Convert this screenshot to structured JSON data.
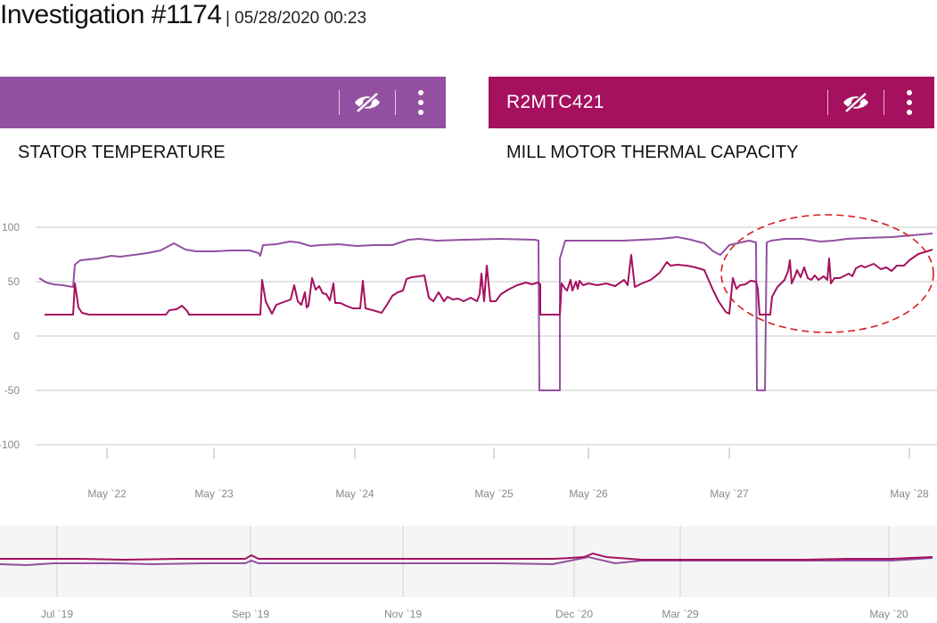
{
  "investigation": {
    "title": "Investigation #1174",
    "meta": "| 05/28/2020 00:23"
  },
  "panels": [
    {
      "header_label": "",
      "subtitle": "STATOR TEMPERATURE",
      "color": "#9350a0"
    },
    {
      "header_label": "R2MTC421",
      "subtitle": "MILL MOTOR THERMAL CAPACITY",
      "color": "#a5105f"
    }
  ],
  "icons": {
    "hide": "eye-slash-icon",
    "more": "more-vertical-icon"
  },
  "colors": {
    "annotation": "#d42020",
    "grid": "#e3e3e3",
    "axis_text": "#888888"
  },
  "chart_data": [
    {
      "type": "line",
      "y_ticks": [
        "100",
        "50",
        "0",
        "-50",
        "-100"
      ],
      "ylim": [
        -100,
        100
      ],
      "x_ticks": [
        "May `22",
        "May `23",
        "May `24",
        "May `25",
        "May `26",
        "May `27",
        "May `28"
      ],
      "grid": true,
      "series": [
        {
          "color": "#9350a0"
        },
        {
          "color": "#a5105f"
        }
      ]
    },
    {
      "type": "line",
      "x_ticks": [
        "Jul `19",
        "Sep `19",
        "Nov `19",
        "Dec `20",
        "Mar `29",
        "May `20"
      ]
    }
  ]
}
